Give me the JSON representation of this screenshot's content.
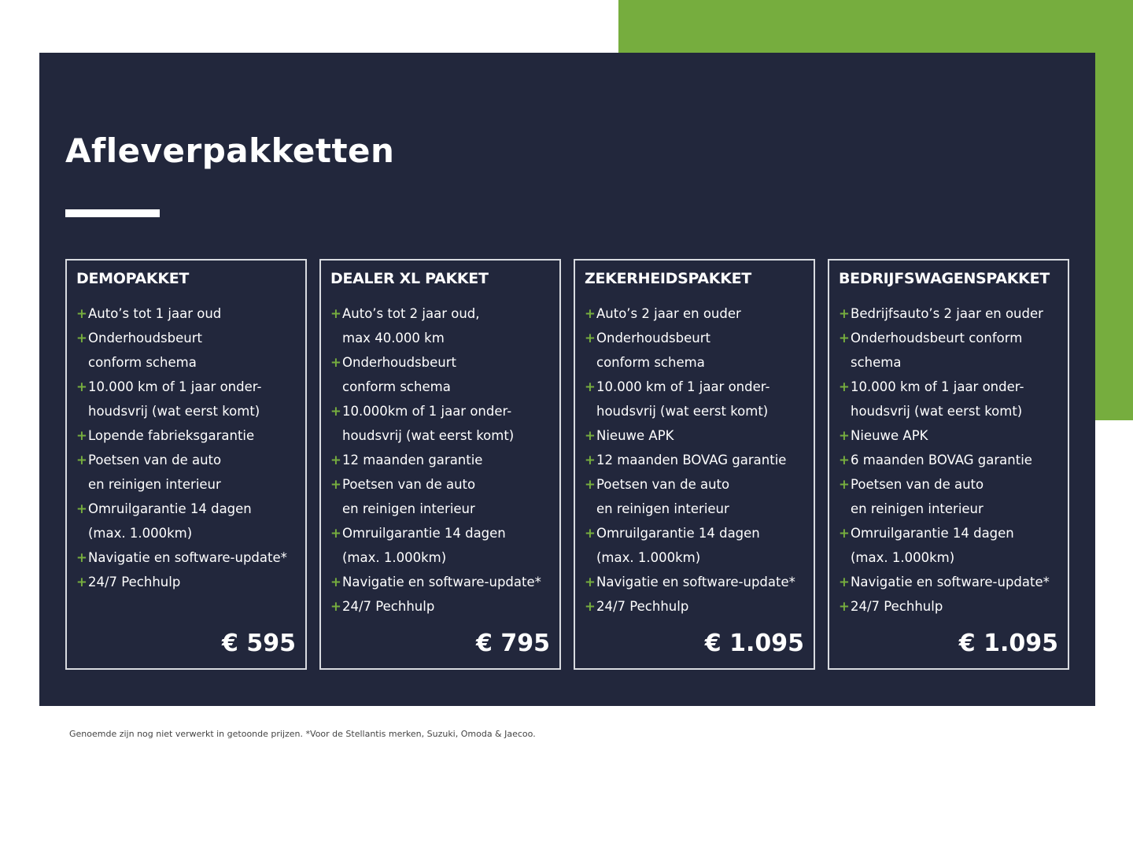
{
  "title": "Afleverpakketten",
  "colors": {
    "panel": "#22273c",
    "accent": "#76ad3e"
  },
  "packages": [
    {
      "name": "DEMOPAKKET",
      "price": "€ 595",
      "items": [
        [
          "Auto’s tot 1 jaar oud"
        ],
        [
          "Onderhoudsbeurt",
          "conform schema"
        ],
        [
          "10.000 km of 1 jaar onder-",
          "houdsvrij (wat eerst komt)"
        ],
        [
          "Lopende fabrieksgarantie"
        ],
        [
          "Poetsen van de auto",
          "en reinigen interieur"
        ],
        [
          "Omruilgarantie 14 dagen",
          "(max. 1.000km)"
        ],
        [
          "Navigatie en software-update*"
        ],
        [
          "24/7 Pechhulp"
        ]
      ]
    },
    {
      "name": "DEALER XL PAKKET",
      "price": "€ 795",
      "items": [
        [
          "Auto’s tot 2 jaar oud,",
          "max 40.000 km"
        ],
        [
          "Onderhoudsbeurt",
          "conform schema"
        ],
        [
          "10.000km of 1 jaar onder-",
          "houdsvrij (wat eerst komt)"
        ],
        [
          "12 maanden garantie"
        ],
        [
          "Poetsen van de auto",
          "en reinigen interieur"
        ],
        [
          "Omruilgarantie 14 dagen",
          "(max. 1.000km)"
        ],
        [
          "Navigatie en software-update*"
        ],
        [
          "24/7 Pechhulp"
        ]
      ]
    },
    {
      "name": "ZEKERHEIDSPAKKET",
      "price": "€ 1.095",
      "items": [
        [
          "Auto’s 2 jaar en ouder"
        ],
        [
          "Onderhoudsbeurt",
          "conform schema"
        ],
        [
          "10.000 km of 1 jaar onder-",
          "houdsvrij (wat eerst komt)"
        ],
        [
          "Nieuwe APK"
        ],
        [
          "12 maanden BOVAG garantie"
        ],
        [
          "Poetsen van de auto",
          "en reinigen interieur"
        ],
        [
          "Omruilgarantie 14 dagen",
          "(max. 1.000km)"
        ],
        [
          "Navigatie en software-update*"
        ],
        [
          "24/7 Pechhulp"
        ]
      ]
    },
    {
      "name": "BEDRIJFSWAGENSPAKKET",
      "price": "€ 1.095",
      "items": [
        [
          "Bedrijfsauto’s 2 jaar en ouder"
        ],
        [
          "Onderhoudsbeurt conform",
          "schema"
        ],
        [
          "10.000 km of 1 jaar onder-",
          "houdsvrij (wat eerst komt)"
        ],
        [
          "Nieuwe APK"
        ],
        [
          "6 maanden BOVAG garantie"
        ],
        [
          "Poetsen van de auto",
          "en reinigen interieur"
        ],
        [
          "Omruilgarantie 14 dagen",
          "(max. 1.000km)"
        ],
        [
          "Navigatie en software-update*"
        ],
        [
          "24/7 Pechhulp"
        ]
      ]
    }
  ],
  "footnote": "Genoemde zijn nog niet verwerkt in getoonde prijzen. *Voor de Stellantis merken, Suzuki, Omoda & Jaecoo."
}
